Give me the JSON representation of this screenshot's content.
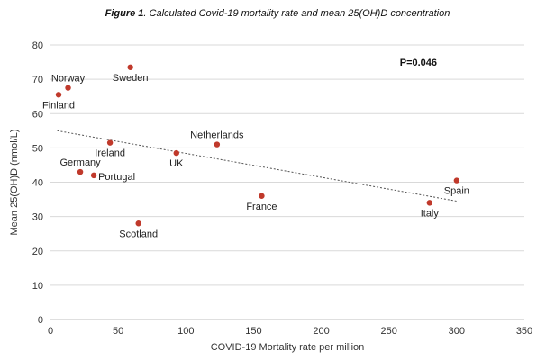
{
  "chart_data": {
    "type": "scatter",
    "title_prefix": "Figure 1",
    "title_rest": ". Calculated Covid-19 mortality rate and mean 25(OH)D concentration",
    "xlabel": "COVID-19 Mortality rate per million",
    "ylabel": "Mean 25(OH)D (nmol/L)",
    "xlim": [
      0,
      350
    ],
    "ylim": [
      0,
      80
    ],
    "xticks": [
      0,
      50,
      100,
      150,
      200,
      250,
      300,
      350
    ],
    "yticks": [
      0,
      10,
      20,
      30,
      40,
      50,
      60,
      70,
      80
    ],
    "grid": true,
    "marker_color": "#c0392b",
    "trend_color": "#555555",
    "points": [
      {
        "label": "Sweden",
        "x": 59,
        "y": 73.5,
        "label_pos": "below"
      },
      {
        "label": "Norway",
        "x": 13,
        "y": 67.5,
        "label_pos": "above"
      },
      {
        "label": "Finland",
        "x": 6,
        "y": 65.5,
        "label_pos": "below"
      },
      {
        "label": "Netherlands",
        "x": 123,
        "y": 51,
        "label_pos": "above"
      },
      {
        "label": "Ireland",
        "x": 44,
        "y": 51.5,
        "label_pos": "below"
      },
      {
        "label": "UK",
        "x": 93,
        "y": 48.5,
        "label_pos": "below"
      },
      {
        "label": "Germany",
        "x": 22,
        "y": 43,
        "label_pos": "above"
      },
      {
        "label": "Portugal",
        "x": 32,
        "y": 42,
        "label_pos": "right"
      },
      {
        "label": "France",
        "x": 156,
        "y": 36,
        "label_pos": "below"
      },
      {
        "label": "Spain",
        "x": 300,
        "y": 40.5,
        "label_pos": "below"
      },
      {
        "label": "Italy",
        "x": 280,
        "y": 34,
        "label_pos": "below"
      },
      {
        "label": "Scotland",
        "x": 65,
        "y": 28,
        "label_pos": "below"
      }
    ],
    "trendline": {
      "x": [
        5,
        300
      ],
      "y": [
        55,
        34.5
      ]
    },
    "annotation": "P=0.046",
    "annotation_pos": {
      "x": 258,
      "y": 74
    }
  }
}
